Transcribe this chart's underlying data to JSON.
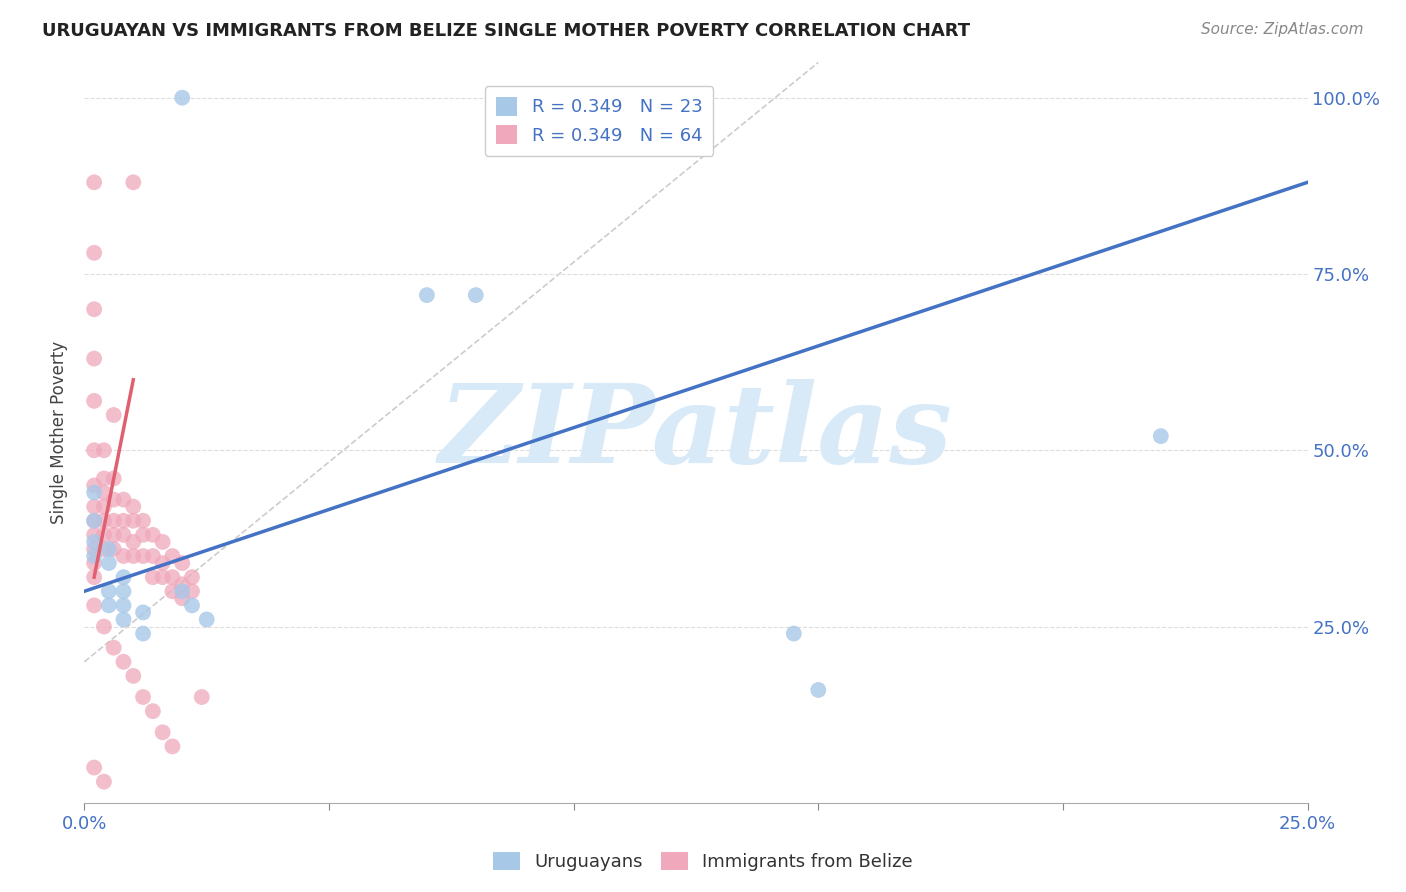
{
  "title": "URUGUAYAN VS IMMIGRANTS FROM BELIZE SINGLE MOTHER POVERTY CORRELATION CHART",
  "source": "Source: ZipAtlas.com",
  "ylabel": "Single Mother Poverty",
  "xlim": [
    0.0,
    0.25
  ],
  "ylim": [
    0.0,
    1.05
  ],
  "xticks": [
    0.0,
    0.05,
    0.1,
    0.15,
    0.2,
    0.25
  ],
  "xtick_labels": [
    "0.0%",
    "",
    "",
    "",
    "",
    "25.0%"
  ],
  "ytick_positions": [
    0.25,
    0.5,
    0.75,
    1.0
  ],
  "ytick_labels": [
    "25.0%",
    "50.0%",
    "75.0%",
    "100.0%"
  ],
  "legend_label_1": "R = 0.349   N = 23",
  "legend_label_2": "R = 0.349   N = 64",
  "uruguayan_color": "#a8c8e8",
  "belize_color": "#f0a8bc",
  "blue_line_color": "#4472c4",
  "pink_line_color": "#e06070",
  "ref_line_color": "#c0c0c0",
  "watermark": "ZIPatlas",
  "watermark_color": "#d8eaf8",
  "background_color": "#ffffff",
  "grid_color": "#dddddd",
  "bottom_legend_1": "Uruguayans",
  "bottom_legend_2": "Immigrants from Belize",
  "uruguayan_x": [
    0.02,
    0.07,
    0.08,
    0.002,
    0.002,
    0.002,
    0.002,
    0.005,
    0.005,
    0.005,
    0.005,
    0.008,
    0.008,
    0.008,
    0.008,
    0.012,
    0.012,
    0.145,
    0.15,
    0.22,
    0.02,
    0.022,
    0.025
  ],
  "uruguayan_y": [
    1.0,
    0.72,
    0.72,
    0.44,
    0.4,
    0.37,
    0.35,
    0.36,
    0.34,
    0.3,
    0.28,
    0.32,
    0.3,
    0.28,
    0.26,
    0.27,
    0.24,
    0.24,
    0.16,
    0.52,
    0.3,
    0.28,
    0.26
  ],
  "belize_x": [
    0.01,
    0.002,
    0.002,
    0.002,
    0.002,
    0.002,
    0.002,
    0.002,
    0.002,
    0.002,
    0.002,
    0.002,
    0.002,
    0.002,
    0.004,
    0.004,
    0.004,
    0.004,
    0.004,
    0.004,
    0.004,
    0.006,
    0.006,
    0.006,
    0.006,
    0.006,
    0.008,
    0.008,
    0.008,
    0.008,
    0.01,
    0.01,
    0.01,
    0.01,
    0.012,
    0.012,
    0.012,
    0.014,
    0.014,
    0.014,
    0.016,
    0.016,
    0.016,
    0.018,
    0.018,
    0.018,
    0.02,
    0.02,
    0.02,
    0.022,
    0.022,
    0.002,
    0.004,
    0.006,
    0.008,
    0.01,
    0.012,
    0.014,
    0.016,
    0.018,
    0.002,
    0.004,
    0.006,
    0.024
  ],
  "belize_y": [
    0.88,
    0.88,
    0.78,
    0.7,
    0.63,
    0.57,
    0.5,
    0.45,
    0.42,
    0.4,
    0.38,
    0.36,
    0.34,
    0.32,
    0.5,
    0.46,
    0.44,
    0.42,
    0.4,
    0.38,
    0.36,
    0.46,
    0.43,
    0.4,
    0.38,
    0.36,
    0.43,
    0.4,
    0.38,
    0.35,
    0.42,
    0.4,
    0.37,
    0.35,
    0.4,
    0.38,
    0.35,
    0.38,
    0.35,
    0.32,
    0.37,
    0.34,
    0.32,
    0.35,
    0.32,
    0.3,
    0.34,
    0.31,
    0.29,
    0.32,
    0.3,
    0.28,
    0.25,
    0.22,
    0.2,
    0.18,
    0.15,
    0.13,
    0.1,
    0.08,
    0.05,
    0.03,
    0.55,
    0.15
  ],
  "blue_line_x": [
    0.0,
    0.25
  ],
  "blue_line_y": [
    0.3,
    0.88
  ],
  "pink_line_x": [
    0.002,
    0.01
  ],
  "pink_line_y": [
    0.32,
    0.6
  ],
  "ref_line_x": [
    0.0,
    0.15
  ],
  "ref_line_y": [
    0.2,
    1.05
  ]
}
